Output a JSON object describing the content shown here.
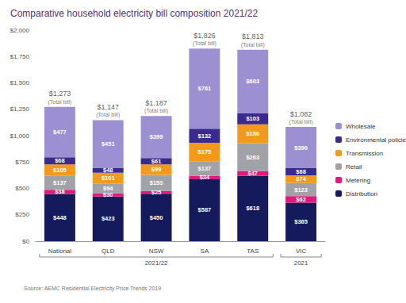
{
  "chart_data": {
    "type": "bar",
    "title": "Comparative household electricity bill composition 2021/22",
    "source": "Source: AEMC Residential Electricity Price Trends 2019",
    "categories": [
      "National",
      "QLD",
      "NSW",
      "SA",
      "TAS",
      "VIC"
    ],
    "stacked": true,
    "data_labels": true,
    "grid": false,
    "legend": "right",
    "ylim": [
      0,
      2000
    ],
    "yticks": [
      {
        "value": 0,
        "label": "$0"
      },
      {
        "value": 250,
        "label": "$250"
      },
      {
        "value": 500,
        "label": "$500"
      },
      {
        "value": 750,
        "label": "$750"
      },
      {
        "value": 1000,
        "label": "$1,000"
      },
      {
        "value": 1250,
        "label": "$1,250"
      },
      {
        "value": 1500,
        "label": "$1,500"
      },
      {
        "value": 1750,
        "label": "$1,750"
      },
      {
        "value": 2000,
        "label": "$2,000"
      }
    ],
    "series": [
      {
        "name": "Distribution",
        "color": "#141a5c",
        "values": [
          448,
          423,
          450,
          587,
          618,
          365
        ],
        "value_labels": [
          "$448",
          "$423",
          "$450",
          "$587",
          "$618",
          "$365"
        ]
      },
      {
        "name": "Metering",
        "color": "#e5177b",
        "values": [
          38,
          30,
          25,
          34,
          47,
          62
        ],
        "value_labels": [
          "$38",
          "$30",
          "$25",
          "$34",
          "$47",
          "$62"
        ]
      },
      {
        "name": "Retail",
        "color": "#a1a1a8",
        "values": [
          137,
          94,
          153,
          137,
          263,
          123
        ],
        "value_labels": [
          "$137",
          "$94",
          "$153",
          "$137",
          "$263",
          "$123"
        ]
      },
      {
        "name": "Transmission",
        "color": "#f39a1e",
        "values": [
          105,
          101,
          99,
          175,
          180,
          74
        ],
        "value_labels": [
          "$105",
          "$101",
          "$99",
          "$175",
          "$180",
          "$74"
        ]
      },
      {
        "name": "Environmental policies",
        "color": "#3a2a8e",
        "values": [
          68,
          48,
          61,
          132,
          103,
          68
        ],
        "value_labels": [
          "$68",
          "$48",
          "$61",
          "$132",
          "$103",
          "$68"
        ]
      },
      {
        "name": "Wholesale",
        "color": "#9d90d2",
        "values": [
          477,
          451,
          399,
          761,
          603,
          390
        ],
        "value_labels": [
          "$477",
          "$451",
          "$399",
          "$761",
          "$603",
          "$390"
        ]
      }
    ],
    "totals": [
      1273,
      1147,
      1187,
      1826,
      1813,
      1082
    ],
    "total_labels": [
      "$1,273",
      "$1,147",
      "$1,187",
      "$1,826",
      "$1,813",
      "$1,082"
    ],
    "total_note": "(Total bill)",
    "groups": [
      {
        "label": "2021/22",
        "categories": [
          "National",
          "QLD",
          "NSW",
          "SA",
          "TAS"
        ]
      },
      {
        "label": "2021",
        "categories": [
          "VIC"
        ]
      }
    ]
  }
}
